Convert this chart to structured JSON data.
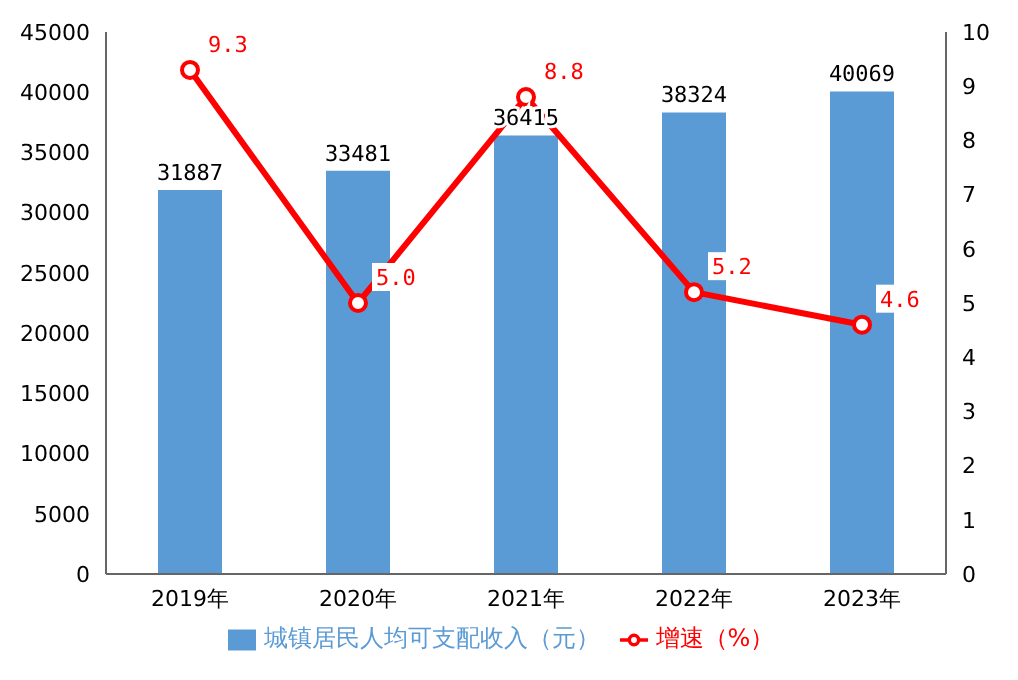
{
  "chart_data": {
    "type": "bar",
    "categories": [
      "2019年",
      "2020年",
      "2021年",
      "2022年",
      "2023年"
    ],
    "series": [
      {
        "name": "城镇居民人均可支配收入（元）",
        "color": "#5b9bd5",
        "values": [
          31887,
          33481,
          36415,
          38324,
          40069
        ]
      },
      {
        "name": "增速（%）",
        "type": "line",
        "axis": "y2",
        "color": "#ff0000",
        "values": [
          9.3,
          5.0,
          8.8,
          5.2,
          4.6
        ],
        "value_labels": [
          "9.3",
          "5.0",
          "8.8",
          "5.2",
          "4.6"
        ]
      }
    ],
    "ylim": [
      0,
      45000
    ],
    "yticks": [
      0,
      5000,
      10000,
      15000,
      20000,
      25000,
      30000,
      35000,
      40000,
      45000
    ],
    "y2lim": [
      0,
      10
    ],
    "y2ticks": [
      0,
      1,
      2,
      3,
      4,
      5,
      6,
      7,
      8,
      9,
      10
    ],
    "grid": false,
    "legend": "bottom",
    "data_labels": true,
    "marker": "circle",
    "line_style": "solid"
  }
}
